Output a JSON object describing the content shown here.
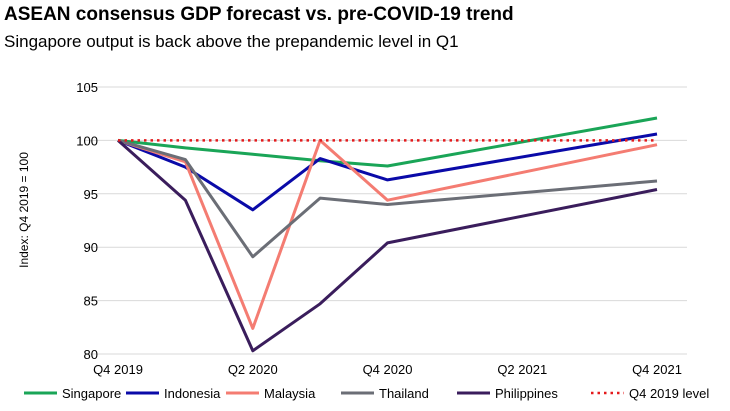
{
  "title": "ASEAN consensus GDP forecast vs. pre-COVID-19 trend",
  "subtitle": "Singapore output is back above the prepandemic level in Q1",
  "chart_data": {
    "type": "line",
    "ylabel": "Index: Q4 2019 = 100",
    "xlabel": "",
    "ylim": [
      80,
      105
    ],
    "yticks": [
      80,
      85,
      90,
      95,
      100,
      105
    ],
    "x": [
      "Q4 2019",
      "Q1 2020",
      "Q2 2020",
      "Q3 2020",
      "Q4 2020",
      "Q1 2021",
      "Q2 2021",
      "Q3 2021",
      "Q4 2021"
    ],
    "xtick_labels": [
      "Q4 2019",
      "",
      "Q2 2020",
      "",
      "Q4 2020",
      "",
      "Q2 2021",
      "",
      "Q4 2021"
    ],
    "grid": "horizontal",
    "legend_position": "bottom",
    "series": [
      {
        "name": "Singapore",
        "color": "#1aa557",
        "dash": "solid",
        "values": [
          100,
          99.3,
          98.7,
          98.1,
          97.6,
          null,
          null,
          null,
          102.1
        ]
      },
      {
        "name": "Indonesia",
        "color": "#0a0aa8",
        "dash": "solid",
        "values": [
          100,
          97.5,
          93.5,
          98.3,
          96.3,
          null,
          null,
          null,
          100.6
        ]
      },
      {
        "name": "Malaysia",
        "color": "#f47c72",
        "dash": "solid",
        "values": [
          100,
          98.0,
          82.4,
          100.0,
          94.4,
          null,
          null,
          null,
          99.6
        ]
      },
      {
        "name": "Thailand",
        "color": "#6b6e76",
        "dash": "solid",
        "values": [
          100,
          98.2,
          89.1,
          94.6,
          94.0,
          null,
          null,
          null,
          96.2
        ]
      },
      {
        "name": "Philippines",
        "color": "#3a1d5c",
        "dash": "solid",
        "values": [
          100,
          94.4,
          80.3,
          84.7,
          90.4,
          null,
          null,
          null,
          95.4
        ]
      },
      {
        "name": "Q4 2019 level",
        "color": "#e41a1c",
        "dash": "dotted",
        "values": [
          100,
          100,
          100,
          100,
          100,
          100,
          100,
          100,
          100
        ]
      }
    ]
  }
}
